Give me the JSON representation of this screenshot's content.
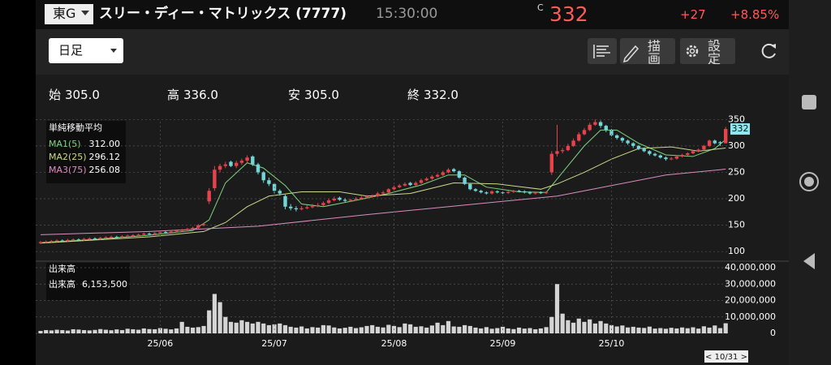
{
  "header": {
    "market": "東G",
    "title": "スリー・ディー・マトリックス (7777)",
    "time": "15:30:00",
    "price_flag": "C",
    "price": "332",
    "change": "+27",
    "change_pct": "+8.85%"
  },
  "toolbar": {
    "period": "日足",
    "draw": "描画",
    "settings": "設定"
  },
  "ohlc_row": [
    {
      "label": "始",
      "value": "305.0"
    },
    {
      "label": "高",
      "value": "336.0"
    },
    {
      "label": "安",
      "value": "305.0"
    },
    {
      "label": "終",
      "value": "332.0"
    }
  ],
  "cursor_date": "< 10/31 >",
  "chart_data": [
    {
      "type": "candlestick",
      "legend_title": "単純移動平均",
      "up_color": "#e8434b",
      "down_color": "#70d6d6",
      "ylim": [
        88,
        352
      ],
      "yticks": [
        100,
        150,
        200,
        250,
        300,
        350
      ],
      "grid": true,
      "last_price": {
        "value": 332,
        "label": "332"
      },
      "ohlc": [
        [
          116,
          120,
          114,
          118
        ],
        [
          118,
          121,
          116,
          119
        ],
        [
          119,
          122,
          117,
          120
        ],
        [
          120,
          123,
          118,
          121
        ],
        [
          121,
          123,
          118,
          120
        ],
        [
          120,
          124,
          118,
          122
        ],
        [
          122,
          125,
          120,
          123
        ],
        [
          123,
          125,
          120,
          122
        ],
        [
          122,
          126,
          120,
          124
        ],
        [
          124,
          127,
          122,
          125
        ],
        [
          125,
          127,
          122,
          124
        ],
        [
          124,
          128,
          122,
          126
        ],
        [
          126,
          129,
          124,
          127
        ],
        [
          127,
          130,
          125,
          128
        ],
        [
          128,
          130,
          125,
          127
        ],
        [
          127,
          131,
          125,
          129
        ],
        [
          129,
          132,
          127,
          130
        ],
        [
          130,
          133,
          128,
          131
        ],
        [
          131,
          134,
          129,
          132
        ],
        [
          132,
          136,
          130,
          134
        ],
        [
          134,
          136,
          131,
          133
        ],
        [
          133,
          137,
          131,
          135
        ],
        [
          135,
          139,
          133,
          137
        ],
        [
          137,
          139,
          134,
          136
        ],
        [
          136,
          140,
          134,
          138
        ],
        [
          138,
          142,
          136,
          140
        ],
        [
          140,
          143,
          138,
          141
        ],
        [
          141,
          145,
          139,
          143
        ],
        [
          143,
          147,
          141,
          145
        ],
        [
          145,
          152,
          143,
          150
        ],
        [
          150,
          154,
          148,
          152
        ],
        [
          195,
          220,
          190,
          215
        ],
        [
          220,
          262,
          215,
          255
        ],
        [
          255,
          266,
          250,
          262
        ],
        [
          262,
          270,
          258,
          265
        ],
        [
          270,
          272,
          260,
          262
        ],
        [
          262,
          272,
          258,
          268
        ],
        [
          268,
          276,
          264,
          272
        ],
        [
          272,
          282,
          268,
          278
        ],
        [
          280,
          282,
          262,
          265
        ],
        [
          265,
          268,
          246,
          250
        ],
        [
          250,
          252,
          230,
          235
        ],
        [
          235,
          240,
          224,
          228
        ],
        [
          228,
          230,
          210,
          215
        ],
        [
          215,
          218,
          206,
          210
        ],
        [
          205,
          208,
          180,
          185
        ],
        [
          185,
          190,
          178,
          182
        ],
        [
          182,
          186,
          176,
          180
        ],
        [
          180,
          186,
          178,
          182
        ],
        [
          182,
          188,
          180,
          184
        ],
        [
          184,
          190,
          182,
          186
        ],
        [
          186,
          192,
          184,
          188
        ],
        [
          188,
          195,
          186,
          192
        ],
        [
          192,
          200,
          190,
          197
        ],
        [
          197,
          204,
          195,
          200
        ],
        [
          202,
          204,
          196,
          198
        ],
        [
          198,
          201,
          194,
          196
        ],
        [
          196,
          200,
          194,
          198
        ],
        [
          198,
          203,
          196,
          200
        ],
        [
          200,
          205,
          198,
          202
        ],
        [
          202,
          207,
          200,
          204
        ],
        [
          204,
          208,
          202,
          205
        ],
        [
          205,
          213,
          203,
          210
        ],
        [
          210,
          215,
          208,
          212
        ],
        [
          212,
          220,
          210,
          218
        ],
        [
          218,
          225,
          216,
          222
        ],
        [
          222,
          228,
          220,
          225
        ],
        [
          225,
          231,
          223,
          228
        ],
        [
          230,
          232,
          224,
          226
        ],
        [
          226,
          233,
          224,
          230
        ],
        [
          230,
          238,
          228,
          235
        ],
        [
          235,
          241,
          233,
          238
        ],
        [
          238,
          245,
          236,
          242
        ],
        [
          242,
          248,
          240,
          245
        ],
        [
          245,
          253,
          243,
          250
        ],
        [
          250,
          258,
          248,
          255
        ],
        [
          256,
          258,
          250,
          252
        ],
        [
          252,
          254,
          238,
          240
        ],
        [
          240,
          242,
          226,
          228
        ],
        [
          228,
          230,
          216,
          218
        ],
        [
          218,
          220,
          213,
          215
        ],
        [
          215,
          217,
          210,
          212
        ],
        [
          212,
          214,
          208,
          210
        ],
        [
          210,
          216,
          208,
          214
        ],
        [
          214,
          216,
          210,
          212
        ],
        [
          212,
          214,
          209,
          211
        ],
        [
          211,
          215,
          209,
          213
        ],
        [
          213,
          217,
          211,
          215
        ],
        [
          215,
          217,
          212,
          214
        ],
        [
          214,
          216,
          210,
          212
        ],
        [
          212,
          214,
          208,
          210
        ],
        [
          210,
          214,
          208,
          212
        ],
        [
          212,
          214,
          209,
          211
        ],
        [
          211,
          214,
          209,
          212
        ],
        [
          250,
          290,
          245,
          285
        ],
        [
          285,
          340,
          280,
          290
        ],
        [
          290,
          296,
          286,
          292
        ],
        [
          292,
          304,
          290,
          300
        ],
        [
          300,
          314,
          298,
          310
        ],
        [
          310,
          326,
          308,
          322
        ],
        [
          322,
          334,
          320,
          330
        ],
        [
          330,
          344,
          328,
          340
        ],
        [
          340,
          350,
          338,
          345
        ],
        [
          345,
          348,
          334,
          338
        ],
        [
          338,
          340,
          326,
          330
        ],
        [
          330,
          332,
          318,
          320
        ],
        [
          320,
          322,
          312,
          315
        ],
        [
          315,
          317,
          306,
          310
        ],
        [
          310,
          312,
          302,
          305
        ],
        [
          305,
          307,
          296,
          300
        ],
        [
          300,
          302,
          292,
          295
        ],
        [
          295,
          297,
          288,
          290
        ],
        [
          290,
          292,
          282,
          285
        ],
        [
          285,
          287,
          280,
          282
        ],
        [
          282,
          284,
          276,
          278
        ],
        [
          278,
          280,
          272,
          275
        ],
        [
          275,
          279,
          273,
          276
        ],
        [
          276,
          282,
          274,
          280
        ],
        [
          280,
          285,
          278,
          283
        ],
        [
          283,
          288,
          281,
          286
        ],
        [
          286,
          292,
          284,
          290
        ],
        [
          290,
          295,
          288,
          293
        ],
        [
          293,
          302,
          291,
          300
        ],
        [
          300,
          312,
          298,
          310
        ],
        [
          310,
          312,
          303,
          305
        ],
        [
          307,
          309,
          300,
          305
        ],
        [
          305,
          336,
          305,
          332
        ]
      ],
      "lines": [
        {
          "name": "MA1(5)",
          "label": "312.00",
          "color": "#7fd37f",
          "x": [
            0,
            10,
            20,
            28,
            31,
            34,
            38,
            41,
            45,
            48,
            52,
            58,
            64,
            70,
            75,
            78,
            82,
            88,
            93,
            96,
            100,
            103,
            106,
            110,
            115,
            120,
            124,
            126
          ],
          "values": [
            117,
            123,
            131,
            140,
            160,
            230,
            268,
            258,
            225,
            190,
            185,
            197,
            210,
            226,
            245,
            245,
            222,
            213,
            212,
            250,
            300,
            330,
            330,
            305,
            283,
            280,
            295,
            312
          ]
        },
        {
          "name": "MA2(25)",
          "label": "296.12",
          "color": "#c9d98a",
          "x": [
            0,
            20,
            30,
            34,
            38,
            42,
            48,
            55,
            60,
            68,
            76,
            84,
            92,
            95,
            100,
            105,
            110,
            116,
            121,
            126
          ],
          "values": [
            116,
            128,
            138,
            155,
            185,
            205,
            213,
            213,
            205,
            210,
            230,
            228,
            218,
            228,
            250,
            275,
            295,
            298,
            290,
            296
          ]
        },
        {
          "name": "MA3(75)",
          "label": "256.08",
          "color": "#d98fc0",
          "x": [
            0,
            20,
            40,
            60,
            80,
            95,
            105,
            115,
            126
          ],
          "values": [
            132,
            138,
            148,
            170,
            190,
            205,
            225,
            245,
            256
          ]
        }
      ]
    },
    {
      "type": "bar",
      "title": "出来高",
      "readout_label": "出来高",
      "readout_value": "6,153,500",
      "color": "#d4d4d4",
      "ylim": [
        0,
        40000000
      ],
      "yticks": [
        0,
        {
          "value": 10000000,
          "label": "10,000,000"
        },
        {
          "value": 20000000,
          "label": "20,000,000"
        },
        {
          "value": 30000000,
          "label": "30,000,000"
        },
        {
          "value": 40000000,
          "label": "40,000,000"
        }
      ],
      "categories": [
        null,
        null,
        null,
        null,
        null,
        null,
        null,
        null,
        null,
        null,
        null,
        null,
        null,
        null,
        null,
        null,
        null,
        null,
        null,
        null,
        null,
        null,
        "25/06",
        null,
        null,
        null,
        null,
        null,
        null,
        null,
        null,
        null,
        null,
        null,
        null,
        null,
        null,
        null,
        null,
        null,
        null,
        null,
        null,
        "25/07",
        null,
        null,
        null,
        null,
        null,
        null,
        null,
        null,
        null,
        null,
        null,
        null,
        null,
        null,
        null,
        null,
        null,
        null,
        null,
        null,
        null,
        "25/08",
        null,
        null,
        null,
        null,
        null,
        null,
        null,
        null,
        null,
        null,
        null,
        null,
        null,
        null,
        null,
        null,
        null,
        null,
        null,
        "25/09",
        null,
        null,
        null,
        null,
        null,
        null,
        null,
        null,
        null,
        null,
        null,
        null,
        null,
        null,
        null,
        null,
        null,
        null,
        null,
        "25/10",
        null,
        null,
        null,
        null,
        null,
        null,
        null,
        null,
        null,
        null,
        null,
        null,
        null,
        null,
        null,
        null,
        null,
        null,
        null,
        null,
        null
      ],
      "values": [
        1500000,
        2000000,
        1800000,
        2200000,
        2000000,
        1700000,
        2500000,
        2300000,
        2000000,
        1800000,
        2100000,
        2600000,
        2200000,
        1900000,
        2400000,
        2000000,
        2800000,
        2500000,
        2200000,
        3000000,
        2600000,
        2500000,
        3200000,
        2800000,
        2400000,
        3000000,
        7000000,
        4000000,
        3500000,
        3800000,
        4500000,
        14000000,
        24000000,
        19000000,
        10000000,
        7000000,
        6500000,
        8000000,
        7000000,
        6000000,
        7000000,
        6000000,
        5000000,
        5500000,
        6000000,
        5000000,
        4000000,
        3500000,
        4200000,
        3000000,
        3800000,
        3500000,
        5000000,
        4800000,
        3600000,
        3000000,
        3400000,
        4000000,
        3200000,
        3700000,
        4500000,
        5000000,
        4000000,
        3600000,
        5200000,
        4500000,
        3800000,
        6000000,
        5500000,
        4000000,
        4300000,
        3500000,
        4800000,
        6500000,
        5000000,
        7500000,
        4200000,
        4000000,
        5000000,
        4500000,
        3500000,
        3000000,
        3800000,
        2800000,
        3200000,
        4000000,
        3000000,
        2600000,
        3500000,
        2900000,
        3200000,
        2500000,
        3000000,
        3800000,
        10000000,
        30000000,
        12000000,
        8000000,
        6500000,
        9000000,
        7000000,
        8500000,
        6000000,
        7500000,
        6000000,
        5000000,
        4200000,
        4800000,
        3600000,
        4000000,
        3500000,
        3300000,
        4100000,
        2900000,
        3200000,
        2800000,
        3400000,
        3000000,
        3600000,
        3100000,
        3700000,
        2900000,
        4300000,
        3500000,
        4800000,
        3200000,
        6153500
      ]
    }
  ]
}
